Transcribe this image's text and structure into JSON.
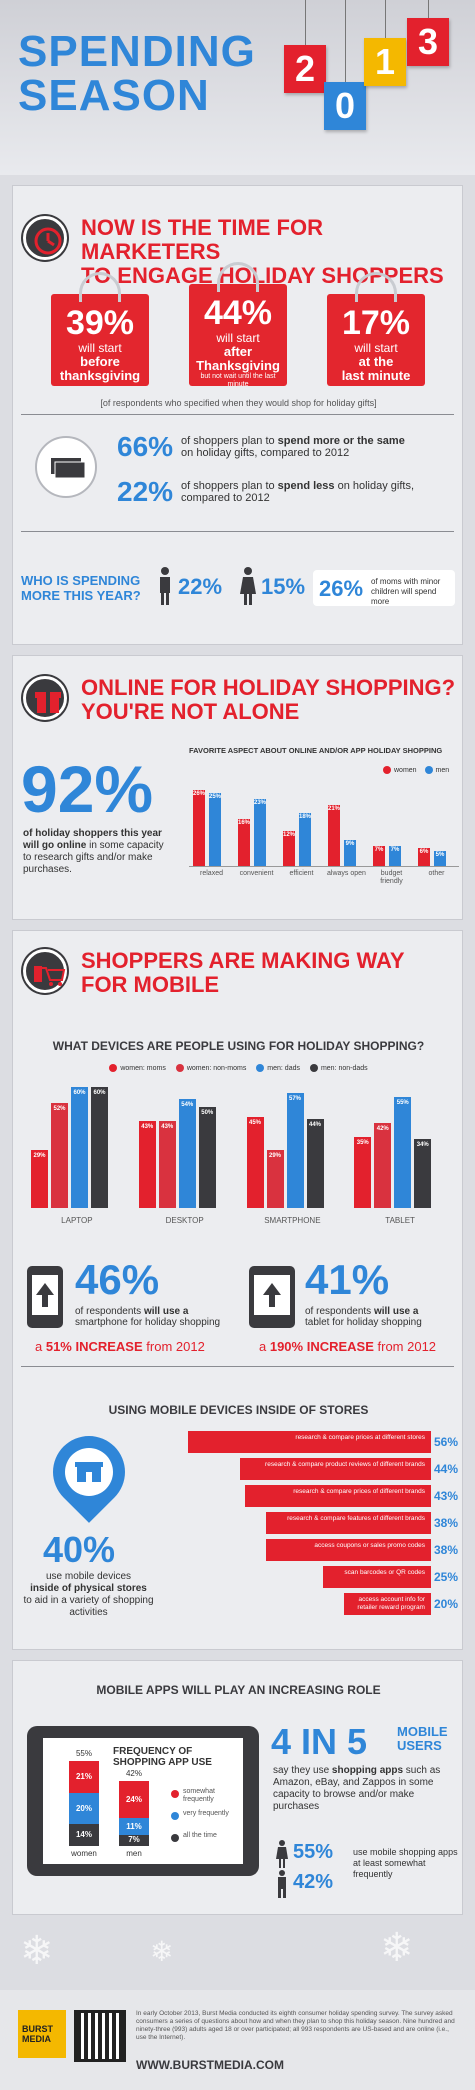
{
  "hero": {
    "line1": "SPENDING",
    "line2": "SEASON",
    "year": [
      "2",
      "0",
      "1",
      "3"
    ],
    "colors": [
      "#e3212d",
      "#2f86d8",
      "#f4b800",
      "#e3212d"
    ]
  },
  "s1": {
    "title1": "NOW IS THE TIME FOR MARKETERS",
    "title2": "TO ENGAGE HOLIDAY SHOPPERS",
    "bags": [
      {
        "pct": "39%",
        "l1": "will start",
        "l2": "before",
        "l3": "thanksgiving",
        "l4": ""
      },
      {
        "pct": "44%",
        "l1": "will start",
        "l2": "after",
        "l3": "Thanksgiving",
        "l4": "but not wait until the last minute"
      },
      {
        "pct": "17%",
        "l1": "will start",
        "l2": "at the",
        "l3": "last minute",
        "l4": ""
      }
    ],
    "note": "[of respondents who specified when they would shop for holiday gifts]",
    "more_pct": "66%",
    "more_a": "of shoppers plan to ",
    "more_b": "spend more or the same",
    "more_c": "on holiday gifts, compared to 2012",
    "less_pct": "22%",
    "less_a": "of shoppers plan to ",
    "less_b": "spend less",
    "less_c": "on holiday gifts, compared to 2012",
    "who1": "WHO IS SPENDING",
    "who2": "MORE THIS YEAR?",
    "men": "22%",
    "women": "15%",
    "moms_pct": "26%",
    "moms_txt": "of moms with minor children will spend more"
  },
  "s2": {
    "title1": "ONLINE FOR HOLIDAY SHOPPING?",
    "title2": "YOU'RE NOT ALONE",
    "big": "92%",
    "desc_a": "of holiday shoppers this year ",
    "desc_b": "will go online",
    "desc_c": " in some capacity to research gifts and/or make purchases."
  },
  "s3": {
    "title1": "SHOPPERS ARE MAKING WAY",
    "title2": "FOR MOBILE",
    "q": "WHAT DEVICES ARE PEOPLE USING FOR HOLIDAY SHOPPING?",
    "p1": "46%",
    "p1a": "of respondents ",
    "p1b": "will use a",
    "p1c": "smartphone",
    "p1d": " for holiday shopping",
    "inc1a": "a ",
    "inc1b": "51% INCREASE",
    "inc1c": " from 2012",
    "p2": "41%",
    "p2a": "of respondents ",
    "p2b": "will use a",
    "p2c": "tablet",
    "p2d": " for holiday shopping",
    "inc2a": "a ",
    "inc2b": "190% INCREASE",
    "inc2c": " from 2012",
    "stores_title": "USING MOBILE DEVICES INSIDE OF STORES",
    "stores_big": "40%",
    "stores_a": "use mobile devices",
    "stores_b": "inside of physical stores",
    "stores_c": "to aid in a variety of shopping activities"
  },
  "s4": {
    "title": "MOBILE APPS WILL PLAY AN INCREASING ROLE",
    "freq1": "FREQUENCY OF",
    "freq2": "SHOPPING APP USE",
    "four": "4 IN 5",
    "mob1": "MOBILE",
    "mob2": "USERS",
    "say_a": "say they use ",
    "say_b": "shopping apps",
    "say_c": " such as Amazon, eBay, and Zappos in some capacity to browse and/or make purchases",
    "w55": "55%",
    "m42": "42%",
    "use_txt": "use mobile shopping apps at least somewhat frequently"
  },
  "footer": {
    "brand1": "BURST",
    "brand2": "MEDIA",
    "note": "In early October 2013, Burst Media conducted its eighth consumer holiday spending survey. The survey asked consumers a series of questions about how and when they plan to shop this holiday season. Nine hundred and ninety-three (993) adults aged 18 or over participated; all 993 respondents are US-based and are online (i.e., use the Internet).",
    "url": "WWW.BURSTMEDIA.COM"
  },
  "chart_data": [
    {
      "type": "bar",
      "title": "FAVORITE ASPECT ABOUT ONLINE AND/OR APP HOLIDAY SHOPPING",
      "categories": [
        "relaxed",
        "convenient",
        "efficient",
        "always open",
        "budget friendly",
        "other"
      ],
      "series": [
        {
          "name": "women",
          "color": "#e3212d",
          "values": [
            26,
            16,
            12,
            21,
            7,
            6
          ]
        },
        {
          "name": "men",
          "color": "#2f86d8",
          "values": [
            25,
            23,
            18,
            9,
            7,
            5
          ]
        }
      ],
      "ylim": [
        0,
        28
      ]
    },
    {
      "type": "bar",
      "title": "WHAT DEVICES ARE PEOPLE USING FOR HOLIDAY SHOPPING?",
      "categories": [
        "LAPTOP",
        "DESKTOP",
        "SMARTPHONE",
        "TABLET"
      ],
      "series": [
        {
          "name": "women: moms",
          "color": "#e3212d",
          "values": [
            29,
            43,
            45,
            35
          ]
        },
        {
          "name": "women: non-moms",
          "color": "#d9323f",
          "values": [
            52,
            43,
            29,
            42
          ]
        },
        {
          "name": "men: dads",
          "color": "#2f86d8",
          "values": [
            60,
            54,
            57,
            55
          ]
        },
        {
          "name": "men: non-dads",
          "color": "#3a3a3e",
          "values": [
            60,
            50,
            44,
            34
          ]
        }
      ],
      "ylim": [
        0,
        62
      ]
    },
    {
      "type": "bar",
      "title": "USING MOBILE DEVICES INSIDE OF STORES",
      "categories": [
        "research & compare prices at different stores",
        "research & compare product reviews of different brands",
        "research & compare prices of different brands",
        "research & compare features of different brands",
        "access coupons or sales promo codes",
        "scan barcodes or QR codes",
        "access account info for retailer reward program"
      ],
      "values": [
        56,
        44,
        43,
        38,
        38,
        25,
        20
      ],
      "ylim": [
        0,
        60
      ]
    },
    {
      "type": "bar",
      "title": "FREQUENCY OF SHOPPING APP USE",
      "categories": [
        "women",
        "men"
      ],
      "series": [
        {
          "name": "somewhat frequently",
          "color": "#e3212d",
          "values": [
            21,
            24
          ]
        },
        {
          "name": "very frequently",
          "color": "#2f86d8",
          "values": [
            20,
            11
          ]
        },
        {
          "name": "all the time",
          "color": "#3a3a3e",
          "values": [
            14,
            7
          ]
        }
      ],
      "totals": [
        "55%",
        "42%"
      ]
    }
  ]
}
